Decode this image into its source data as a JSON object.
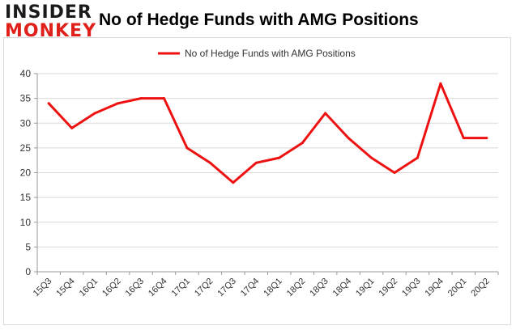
{
  "logo": {
    "line1": "INSIDER",
    "line2": "MONKEY"
  },
  "colors": {
    "series": "#ee1111",
    "grid": "#d9d9d9",
    "axis": "#999999",
    "logo_red": "#e0201b"
  },
  "chart_data": {
    "type": "line",
    "title": "No of Hedge Funds with AMG Positions",
    "xlabel": "",
    "ylabel": "",
    "ylim": [
      0,
      40
    ],
    "yticks": [
      0,
      5,
      10,
      15,
      20,
      25,
      30,
      35,
      40
    ],
    "grid": true,
    "legend_position": "top-center",
    "categories": [
      "15Q3",
      "15Q4",
      "16Q1",
      "16Q2",
      "16Q3",
      "16Q4",
      "17Q1",
      "17Q2",
      "17Q3",
      "17Q4",
      "18Q1",
      "18Q2",
      "18Q3",
      "18Q4",
      "19Q1",
      "19Q2",
      "19Q3",
      "19Q4",
      "20Q1",
      "20Q2"
    ],
    "series": [
      {
        "name": "No of Hedge Funds with AMG Positions",
        "values": [
          34,
          29,
          32,
          34,
          35,
          35,
          25,
          22,
          18,
          22,
          23,
          26,
          32,
          27,
          23,
          20,
          23,
          38,
          27,
          27
        ]
      }
    ]
  }
}
